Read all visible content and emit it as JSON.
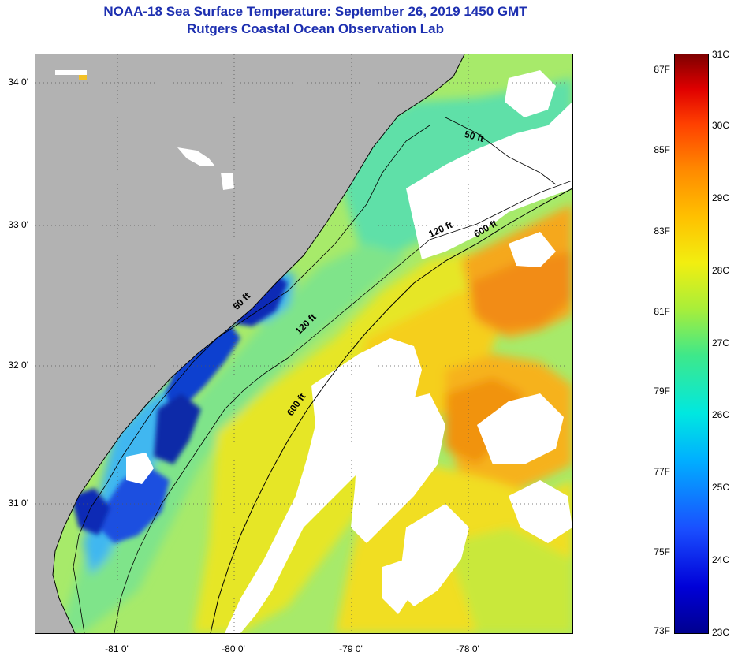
{
  "header": {
    "title": "NOAA-18 Sea Surface Temperature:  September 26, 2019 1450 GMT",
    "subtitle": "Rutgers Coastal Ocean Observation Lab"
  },
  "axes": {
    "lon_labels": [
      "-81 0'",
      "-80 0'",
      "-79 0'",
      "-78 0'"
    ],
    "lat_labels": [
      "34 0'",
      "33 0'",
      "32 0'",
      "31 0'"
    ]
  },
  "contours": {
    "c50_label": "50 ft",
    "c120_label": "120 ft",
    "c600_label": "600 ft"
  },
  "colorbar": {
    "fahrenheit": [
      "87F",
      "85F",
      "83F",
      "81F",
      "79F",
      "77F",
      "75F",
      "73F"
    ],
    "celsius": [
      "31C",
      "30C",
      "29C",
      "28C",
      "27C",
      "26C",
      "25C",
      "24C",
      "23C"
    ]
  },
  "colors": {
    "land": "#b2b2b2",
    "cloud": "#ffffff",
    "title": "#1d2fb0",
    "warm": "#f39a18",
    "cool": "#0b2bb5"
  }
}
